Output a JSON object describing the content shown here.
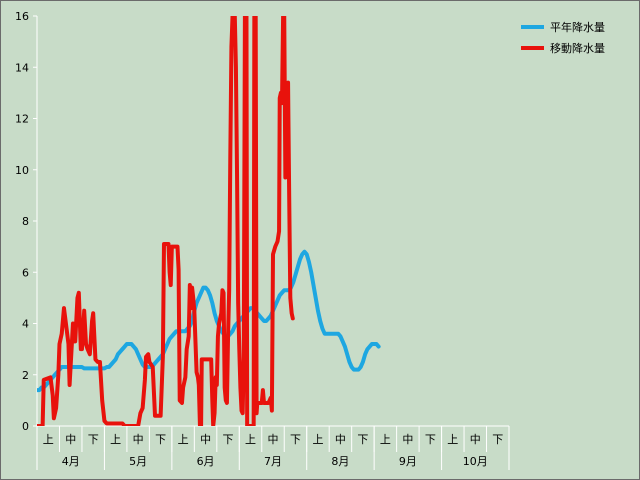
{
  "chart_data": {
    "type": "line",
    "title": "",
    "xlabel": "",
    "ylabel": "",
    "ylim": [
      0,
      16
    ],
    "yticks": [
      0,
      2,
      4,
      6,
      8,
      10,
      12,
      14,
      16
    ],
    "grid": "horizontal-off",
    "legend_position": "top-right",
    "months": [
      "4月",
      "5月",
      "6月",
      "7月",
      "8月",
      "9月",
      "10月"
    ],
    "decades": [
      "上",
      "中",
      "下"
    ],
    "x_points_per_month": 30,
    "series": [
      {
        "name": "平年降水量",
        "color": "#1ea7e1",
        "points": [
          [
            0,
            1.4
          ],
          [
            1,
            1.4
          ],
          [
            2,
            1.5
          ],
          [
            3,
            1.5
          ],
          [
            4,
            1.6
          ],
          [
            5,
            1.7
          ],
          [
            6,
            1.8
          ],
          [
            7,
            1.9
          ],
          [
            8,
            2.0
          ],
          [
            9,
            2.1
          ],
          [
            10,
            2.2
          ],
          [
            11,
            2.3
          ],
          [
            12,
            2.3
          ],
          [
            13,
            2.3
          ],
          [
            14,
            2.3
          ],
          [
            15,
            2.3
          ],
          [
            16,
            2.3
          ],
          [
            17,
            2.3
          ],
          [
            18,
            2.3
          ],
          [
            19,
            2.3
          ],
          [
            20,
            2.3
          ],
          [
            21,
            2.25
          ],
          [
            22,
            2.25
          ],
          [
            23,
            2.25
          ],
          [
            24,
            2.25
          ],
          [
            25,
            2.25
          ],
          [
            26,
            2.25
          ],
          [
            27,
            2.25
          ],
          [
            28,
            2.25
          ],
          [
            29,
            2.25
          ],
          [
            30,
            2.25
          ],
          [
            31,
            2.3
          ],
          [
            32,
            2.3
          ],
          [
            33,
            2.4
          ],
          [
            34,
            2.5
          ],
          [
            35,
            2.6
          ],
          [
            36,
            2.8
          ],
          [
            37,
            2.9
          ],
          [
            38,
            3.0
          ],
          [
            39,
            3.1
          ],
          [
            40,
            3.2
          ],
          [
            41,
            3.2
          ],
          [
            42,
            3.2
          ],
          [
            43,
            3.1
          ],
          [
            44,
            3.0
          ],
          [
            45,
            2.8
          ],
          [
            46,
            2.6
          ],
          [
            47,
            2.4
          ],
          [
            48,
            2.3
          ],
          [
            49,
            2.3
          ],
          [
            50,
            2.3
          ],
          [
            51,
            2.3
          ],
          [
            52,
            2.4
          ],
          [
            53,
            2.5
          ],
          [
            54,
            2.6
          ],
          [
            55,
            2.7
          ],
          [
            56,
            2.8
          ],
          [
            57,
            3.0
          ],
          [
            58,
            3.2
          ],
          [
            59,
            3.4
          ],
          [
            60,
            3.5
          ],
          [
            61,
            3.6
          ],
          [
            62,
            3.7
          ],
          [
            63,
            3.7
          ],
          [
            64,
            3.7
          ],
          [
            65,
            3.7
          ],
          [
            66,
            3.7
          ],
          [
            67,
            3.8
          ],
          [
            68,
            3.9
          ],
          [
            69,
            4.1
          ],
          [
            70,
            4.5
          ],
          [
            71,
            4.8
          ],
          [
            72,
            5.0
          ],
          [
            73,
            5.2
          ],
          [
            74,
            5.4
          ],
          [
            75,
            5.4
          ],
          [
            76,
            5.3
          ],
          [
            77,
            5.1
          ],
          [
            78,
            4.8
          ],
          [
            79,
            4.4
          ],
          [
            80,
            4.1
          ],
          [
            81,
            3.9
          ],
          [
            82,
            3.7
          ],
          [
            83,
            3.6
          ],
          [
            84,
            3.5
          ],
          [
            85,
            3.5
          ],
          [
            86,
            3.6
          ],
          [
            87,
            3.7
          ],
          [
            88,
            3.9
          ],
          [
            89,
            4.0
          ],
          [
            90,
            4.1
          ],
          [
            91,
            4.2
          ],
          [
            92,
            4.3
          ],
          [
            93,
            4.4
          ],
          [
            94,
            4.5
          ],
          [
            95,
            4.6
          ],
          [
            96,
            4.6
          ],
          [
            97,
            4.5
          ],
          [
            98,
            4.4
          ],
          [
            99,
            4.3
          ],
          [
            100,
            4.2
          ],
          [
            101,
            4.1
          ],
          [
            102,
            4.1
          ],
          [
            103,
            4.2
          ],
          [
            104,
            4.3
          ],
          [
            105,
            4.5
          ],
          [
            106,
            4.7
          ],
          [
            107,
            4.9
          ],
          [
            108,
            5.1
          ],
          [
            109,
            5.2
          ],
          [
            110,
            5.3
          ],
          [
            111,
            5.3
          ],
          [
            112,
            5.3
          ],
          [
            113,
            5.4
          ],
          [
            114,
            5.6
          ],
          [
            115,
            5.9
          ],
          [
            116,
            6.2
          ],
          [
            117,
            6.5
          ],
          [
            118,
            6.7
          ],
          [
            119,
            6.8
          ],
          [
            120,
            6.7
          ],
          [
            121,
            6.4
          ],
          [
            122,
            6.0
          ],
          [
            123,
            5.5
          ],
          [
            124,
            5.0
          ],
          [
            125,
            4.5
          ],
          [
            126,
            4.1
          ],
          [
            127,
            3.8
          ],
          [
            128,
            3.6
          ],
          [
            129,
            3.6
          ],
          [
            130,
            3.6
          ],
          [
            131,
            3.6
          ],
          [
            132,
            3.6
          ],
          [
            133,
            3.6
          ],
          [
            134,
            3.6
          ],
          [
            135,
            3.5
          ],
          [
            136,
            3.3
          ],
          [
            137,
            3.1
          ],
          [
            138,
            2.8
          ],
          [
            139,
            2.5
          ],
          [
            140,
            2.3
          ],
          [
            141,
            2.2
          ],
          [
            142,
            2.2
          ],
          [
            143,
            2.2
          ],
          [
            144,
            2.3
          ],
          [
            145,
            2.5
          ],
          [
            146,
            2.8
          ],
          [
            147,
            3.0
          ],
          [
            148,
            3.1
          ],
          [
            149,
            3.2
          ],
          [
            150,
            3.2
          ],
          [
            151,
            3.2
          ],
          [
            152,
            3.1
          ]
        ]
      },
      {
        "name": "移動降水量",
        "color": "#e8120c",
        "points": [
          [
            0,
            0
          ],
          [
            2.5,
            0
          ],
          [
            3,
            1.8
          ],
          [
            6,
            1.9
          ],
          [
            7,
            1.2
          ],
          [
            7.5,
            0.3
          ],
          [
            8.5,
            0.7
          ],
          [
            9.5,
            2.0
          ],
          [
            10,
            3.2
          ],
          [
            11,
            3.6
          ],
          [
            12,
            4.6
          ],
          [
            13,
            3.9
          ],
          [
            14,
            3.2
          ],
          [
            14.5,
            1.6
          ],
          [
            15.5,
            3.2
          ],
          [
            16,
            4.0
          ],
          [
            17,
            3.3
          ],
          [
            18,
            5.0
          ],
          [
            18.6,
            5.2
          ],
          [
            19.5,
            3.0
          ],
          [
            20,
            3.0
          ],
          [
            21,
            4.5
          ],
          [
            21.8,
            3.2
          ],
          [
            22.5,
            3.0
          ],
          [
            23.5,
            2.8
          ],
          [
            24.5,
            4.1
          ],
          [
            25,
            4.4
          ],
          [
            26,
            2.6
          ],
          [
            27,
            2.5
          ],
          [
            28,
            2.5
          ],
          [
            29,
            1.0
          ],
          [
            30,
            0.2
          ],
          [
            31,
            0.1
          ],
          [
            38,
            0.1
          ],
          [
            39,
            0
          ],
          [
            45,
            0
          ],
          [
            46,
            0.5
          ],
          [
            47,
            0.7
          ],
          [
            48,
            1.8
          ],
          [
            48.5,
            2.7
          ],
          [
            49.5,
            2.8
          ],
          [
            50,
            2.5
          ],
          [
            51.5,
            2.3
          ],
          [
            52.5,
            0.4
          ],
          [
            53.5,
            0.4
          ],
          [
            55,
            0.4
          ],
          [
            56,
            2.7
          ],
          [
            56.5,
            7.1
          ],
          [
            58.5,
            7.1
          ],
          [
            59,
            6.0
          ],
          [
            59.5,
            5.5
          ],
          [
            60,
            7.0
          ],
          [
            62.5,
            7.0
          ],
          [
            63,
            6.1
          ],
          [
            63.5,
            1.0
          ],
          [
            64.5,
            0.9
          ],
          [
            65,
            1.5
          ],
          [
            66,
            1.9
          ],
          [
            66.6,
            3.0
          ],
          [
            67.5,
            3.5
          ],
          [
            68,
            5.5
          ],
          [
            68.6,
            4.6
          ],
          [
            69,
            5.4
          ],
          [
            69.5,
            5.0
          ],
          [
            70,
            4.5
          ],
          [
            71,
            2.1
          ],
          [
            71.6,
            1.9
          ],
          [
            72,
            1.6
          ],
          [
            72.5,
            0
          ],
          [
            73,
            0
          ],
          [
            73.3,
            2.6
          ],
          [
            77.5,
            2.6
          ],
          [
            78,
            1.0
          ],
          [
            78.4,
            0
          ],
          [
            79,
            0.5
          ],
          [
            79.5,
            1.9
          ],
          [
            80,
            1.6
          ],
          [
            80.5,
            3.5
          ],
          [
            81,
            4.0
          ],
          [
            82,
            4.4
          ],
          [
            82.5,
            5.3
          ],
          [
            83,
            5.2
          ],
          [
            83.5,
            1.5
          ],
          [
            84,
            1.0
          ],
          [
            84.5,
            0.9
          ],
          [
            85,
            3.5
          ],
          [
            85.5,
            5.3
          ],
          [
            86,
            10.5
          ],
          [
            86.5,
            14.8
          ],
          [
            87,
            16.0
          ],
          [
            88,
            16.0
          ],
          [
            88.5,
            14.0
          ],
          [
            89,
            9.8
          ],
          [
            89.5,
            4.8
          ],
          [
            90,
            3.0
          ],
          [
            90.5,
            1.5
          ],
          [
            91,
            0.6
          ],
          [
            91.5,
            0.5
          ],
          [
            92,
            2.7
          ],
          [
            92.5,
            16.0
          ],
          [
            93.2,
            16.0
          ],
          [
            93.5,
            0
          ],
          [
            96.4,
            0
          ],
          [
            96.7,
            16.0
          ],
          [
            97.3,
            16.0
          ],
          [
            97.7,
            0.5
          ],
          [
            98,
            0.9
          ],
          [
            100,
            0.9
          ],
          [
            100.5,
            1.4
          ],
          [
            101,
            0.9
          ],
          [
            103,
            0.9
          ],
          [
            104,
            1.1
          ],
          [
            104.5,
            0.6
          ],
          [
            105,
            6.7
          ],
          [
            106,
            7.0
          ],
          [
            107,
            7.2
          ],
          [
            107.7,
            7.6
          ],
          [
            108,
            12.8
          ],
          [
            108.5,
            13.0
          ],
          [
            109,
            12.6
          ],
          [
            109.5,
            16.0
          ],
          [
            110,
            16.0
          ],
          [
            110.5,
            9.7
          ],
          [
            111,
            11.8
          ],
          [
            111.7,
            13.4
          ],
          [
            112.2,
            9.0
          ],
          [
            112.7,
            5.0
          ],
          [
            113.3,
            4.4
          ],
          [
            113.8,
            4.2
          ]
        ]
      }
    ]
  }
}
